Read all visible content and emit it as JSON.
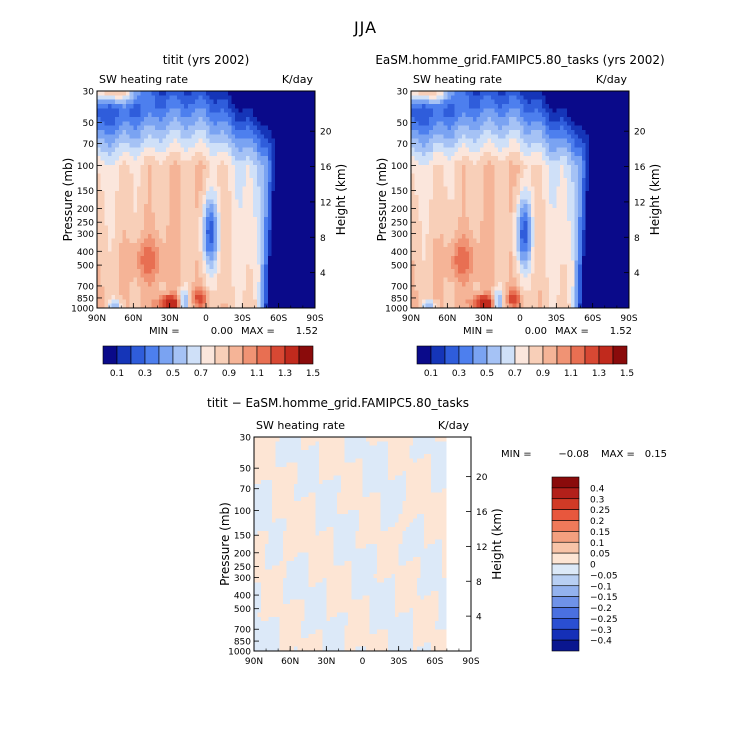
{
  "title": "JJA",
  "chart_data": [
    {
      "type": "heatmap",
      "title": "titit (yrs 2002)",
      "left_string": "SW heating rate",
      "right_string": "K/day",
      "ylabel": "Pressure (mb)",
      "ylabel_right": "Height (km)",
      "min_label": "MIN =",
      "min_value": "0.00",
      "max_label": "MAX =",
      "max_value": "1.52",
      "x_ticks": [
        "90N",
        "60N",
        "30N",
        "0",
        "30S",
        "60S",
        "90S"
      ],
      "x_tick_values": [
        90,
        60,
        30,
        0,
        -30,
        -60,
        -90
      ],
      "p_ticks": [
        1000,
        850,
        700,
        500,
        400,
        300,
        250,
        200,
        150,
        100,
        70,
        50,
        30
      ],
      "h_ticks": [
        4,
        8,
        12,
        16,
        20
      ],
      "colorbar_labels": [
        "0.1",
        "0.3",
        "0.5",
        "0.7",
        "0.9",
        "1.1",
        "1.3",
        "1.5"
      ],
      "colorbar_colors": [
        "#0a0a8a",
        "#1535b8",
        "#2f5ddb",
        "#4d7fee",
        "#7aa3f2",
        "#a5c2f5",
        "#cfe0f8",
        "#fbe6dc",
        "#f8cfb8",
        "#f5b497",
        "#f09374",
        "#e86f52",
        "#d84833",
        "#c12a1d",
        "#8a0b0b"
      ],
      "field": "control"
    },
    {
      "type": "heatmap",
      "title": "EaSM.homme_grid.FAMIPC5.80_tasks (yrs 2002)",
      "left_string": "SW heating rate",
      "right_string": "K/day",
      "ylabel": "Pressure (mb)",
      "ylabel_right": "Height (km)",
      "min_label": "MIN =",
      "min_value": "0.00",
      "max_label": "MAX =",
      "max_value": "1.52",
      "x_ticks": [
        "90N",
        "60N",
        "30N",
        "0",
        "30S",
        "60S",
        "90S"
      ],
      "x_tick_values": [
        90,
        60,
        30,
        0,
        -30,
        -60,
        -90
      ],
      "p_ticks": [
        1000,
        850,
        700,
        500,
        400,
        300,
        250,
        200,
        150,
        100,
        70,
        50,
        30
      ],
      "h_ticks": [
        4,
        8,
        12,
        16,
        20
      ],
      "colorbar_labels": [
        "0.1",
        "0.3",
        "0.5",
        "0.7",
        "0.9",
        "1.1",
        "1.3",
        "1.5"
      ],
      "colorbar_colors": [
        "#0a0a8a",
        "#1535b8",
        "#2f5ddb",
        "#4d7fee",
        "#7aa3f2",
        "#a5c2f5",
        "#cfe0f8",
        "#fbe6dc",
        "#f8cfb8",
        "#f5b497",
        "#f09374",
        "#e86f52",
        "#d84833",
        "#c12a1d",
        "#8a0b0b"
      ],
      "field": "test"
    },
    {
      "type": "heatmap",
      "title": "titit − EaSM.homme_grid.FAMIPC5.80_tasks",
      "left_string": "SW heating rate",
      "right_string": "K/day",
      "ylabel": "Pressure (mb)",
      "ylabel_right": "Height (km)",
      "min_label": "MIN =",
      "min_value": "−0.08",
      "max_label": "MAX =",
      "max_value": "0.15",
      "x_ticks": [
        "90N",
        "60N",
        "30N",
        "0",
        "30S",
        "60S",
        "90S"
      ],
      "x_tick_values": [
        90,
        60,
        30,
        0,
        -30,
        -60,
        -90
      ],
      "p_ticks": [
        1000,
        850,
        700,
        500,
        400,
        300,
        250,
        200,
        150,
        100,
        70,
        50,
        30
      ],
      "h_ticks": [
        4,
        8,
        12,
        16,
        20
      ],
      "colorbar_labels": [
        "0.4",
        "0.3",
        "0.25",
        "0.2",
        "0.15",
        "0.1",
        "0.05",
        "0",
        "−0.05",
        "−0.1",
        "−0.15",
        "−0.2",
        "−0.25",
        "−0.3",
        "−0.4"
      ],
      "colorbar_colors": [
        "#8a0b0b",
        "#b3201a",
        "#d13a26",
        "#e8573d",
        "#f07a5a",
        "#f4a07f",
        "#f8c4a8",
        "#fde5d4",
        "#dce9f8",
        "#b8cff3",
        "#93b2ee",
        "#6f92e8",
        "#4a70e0",
        "#2a4fd2",
        "#1530b8",
        "#0a168f"
      ],
      "field": "diff"
    }
  ]
}
